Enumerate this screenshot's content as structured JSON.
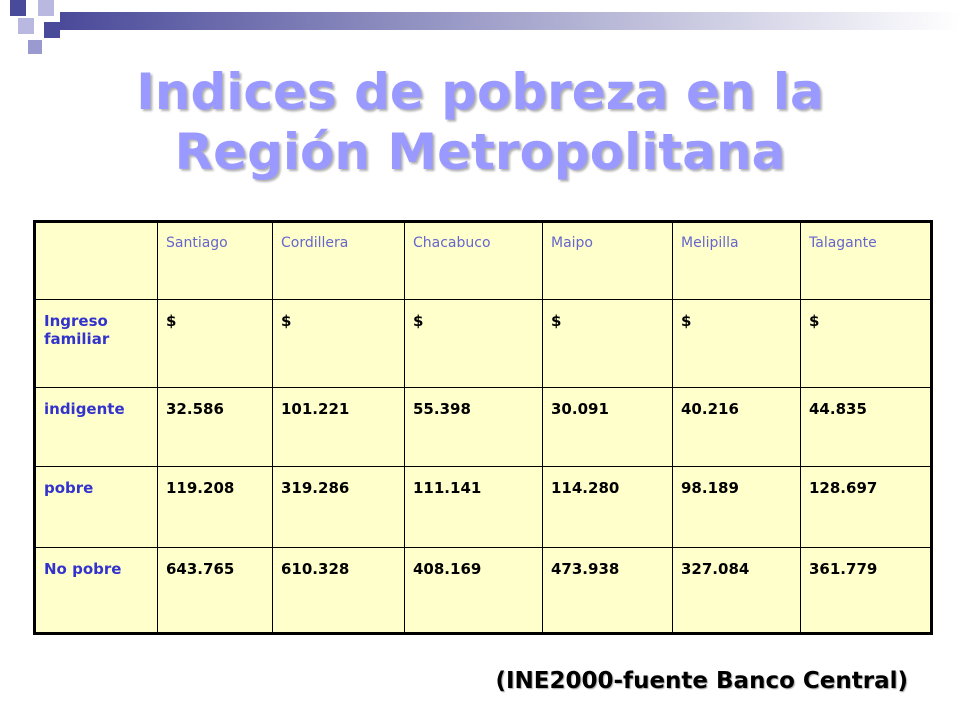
{
  "title": "Indices de pobreza en la Región Metropolitana",
  "table": {
    "columns": [
      "Santiago",
      "Cordillera",
      "Chacabuco",
      "Maipo",
      "Melipilla",
      "Talagante"
    ],
    "rows": [
      {
        "label": "Ingreso familiar",
        "cells": [
          "$",
          "$",
          "$",
          "$",
          "$",
          "$"
        ]
      },
      {
        "label": "indigente",
        "cells": [
          "32.586",
          "101.221",
          "55.398",
          "30.091",
          "40.216",
          "44.835"
        ]
      },
      {
        "label": "pobre",
        "cells": [
          "119.208",
          "319.286",
          "111.141",
          "114.280",
          "98.189",
          "128.697"
        ]
      },
      {
        "label": "No pobre",
        "cells": [
          "643.765",
          "610.328",
          "408.169",
          "473.938",
          "327.084",
          "361.779"
        ]
      }
    ]
  },
  "source": "(INE2000-fuente Banco Central)"
}
